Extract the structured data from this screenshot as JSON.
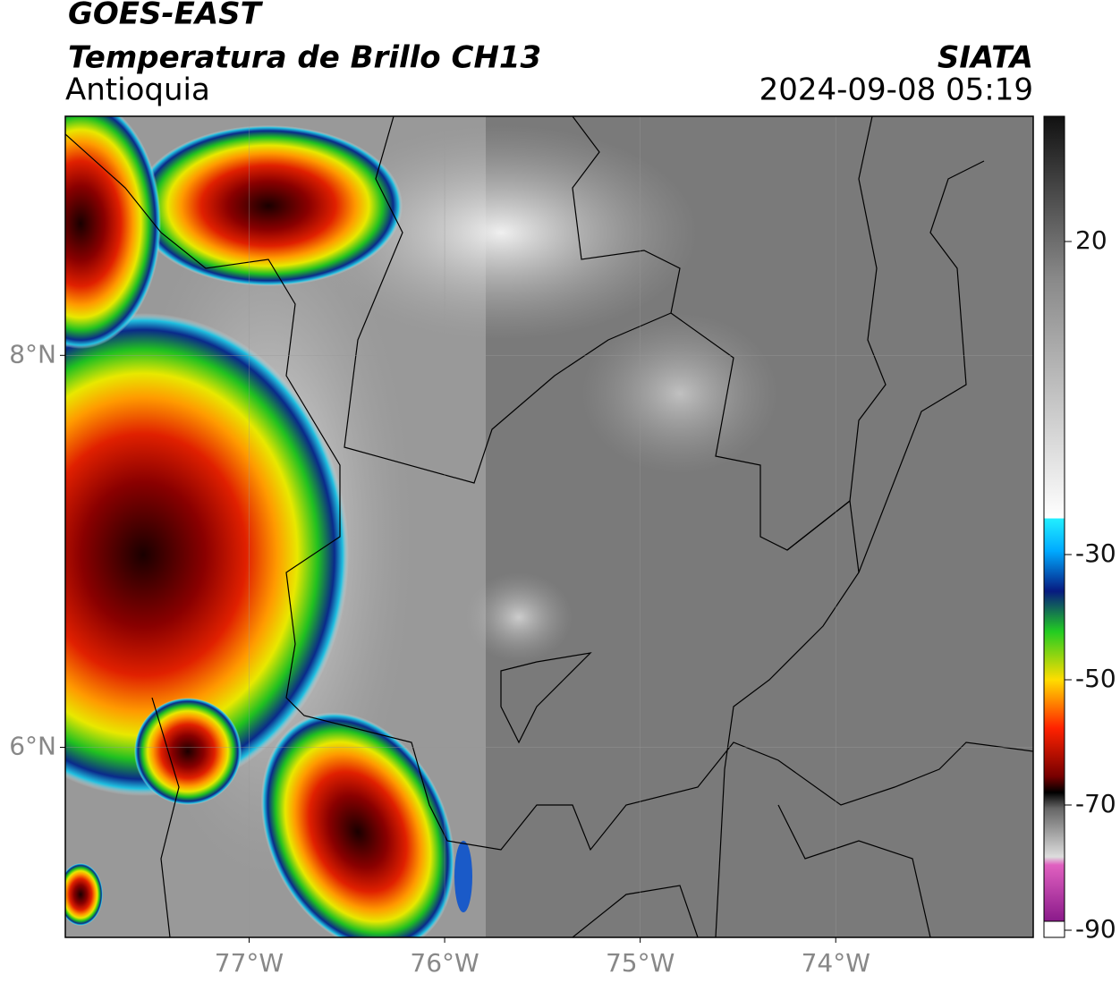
{
  "header": {
    "title": "GOES-EAST",
    "subtitle": "Temperatura de Brillo CH13",
    "region": "Antioquia",
    "agency": "SIATA",
    "datetime": "2024-09-08 05:19"
  },
  "map": {
    "xlim": [
      -77.94,
      -72.99
    ],
    "ylim": [
      5.03,
      9.22
    ],
    "xticks": [
      {
        "value": -77,
        "label": "77°W"
      },
      {
        "value": -76,
        "label": "76°W"
      },
      {
        "value": -75,
        "label": "75°W"
      },
      {
        "value": -74,
        "label": "74°W"
      }
    ],
    "yticks": [
      {
        "value": 8,
        "label": "8°N"
      },
      {
        "value": 6,
        "label": "6°N"
      }
    ]
  },
  "colorbar": {
    "lim": [
      -90,
      40
    ],
    "ticks": [
      20,
      -30,
      -50,
      -70,
      -90
    ]
  }
}
